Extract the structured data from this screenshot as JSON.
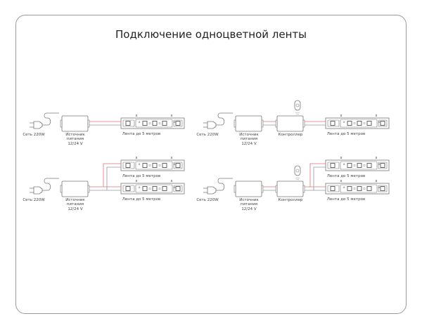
{
  "title": "Подключение одноцветной ленты",
  "labels": {
    "mains": "Сеть 220W",
    "psu_line1": "Источник",
    "psu_line2": "питания",
    "psu_voltage": "12/24 V",
    "controller": "Контроллер",
    "strip": "Лента до 5 метров",
    "cut_mark": "x"
  },
  "colors": {
    "positive_wire": "#e0707a",
    "negative_wire": "#999999",
    "outline": "#777777"
  },
  "diagrams": [
    {
      "name": "single-strip-psu",
      "controller": false,
      "strips": 1
    },
    {
      "name": "two-strips-psu",
      "controller": false,
      "strips": 2
    },
    {
      "name": "single-strip-controller",
      "controller": true,
      "strips": 1
    },
    {
      "name": "two-strips-controller",
      "controller": true,
      "strips": 2
    }
  ]
}
